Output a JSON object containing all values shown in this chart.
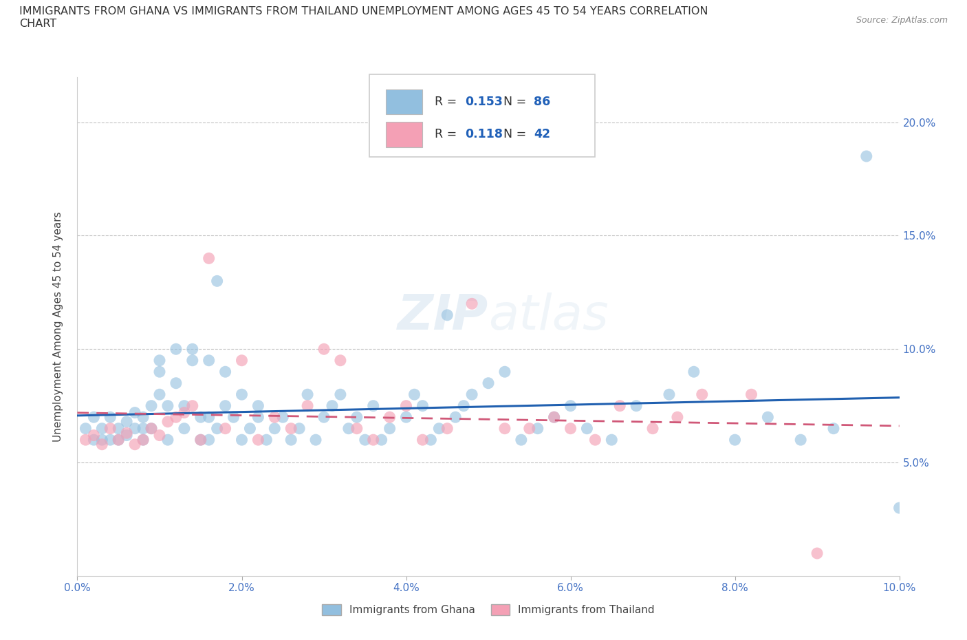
{
  "title": "IMMIGRANTS FROM GHANA VS IMMIGRANTS FROM THAILAND UNEMPLOYMENT AMONG AGES 45 TO 54 YEARS CORRELATION\nCHART",
  "source_text": "Source: ZipAtlas.com",
  "ylabel": "Unemployment Among Ages 45 to 54 years",
  "xlim": [
    0.0,
    0.1
  ],
  "ylim": [
    0.0,
    0.22
  ],
  "xticks": [
    0.0,
    0.02,
    0.04,
    0.06,
    0.08,
    0.1
  ],
  "yticks": [
    0.05,
    0.1,
    0.15,
    0.2
  ],
  "xticklabels": [
    "0.0%",
    "2.0%",
    "4.0%",
    "6.0%",
    "8.0%",
    "10.0%"
  ],
  "yticklabels_right": [
    "5.0%",
    "10.0%",
    "15.0%",
    "20.0%"
  ],
  "ghana_color": "#92bfdf",
  "thailand_color": "#f4a0b5",
  "ghana_line_color": "#2060b0",
  "thailand_line_color": "#d05878",
  "R_ghana": 0.153,
  "N_ghana": 86,
  "R_thailand": 0.118,
  "N_thailand": 42,
  "ghana_x": [
    0.001,
    0.002,
    0.002,
    0.003,
    0.003,
    0.004,
    0.004,
    0.005,
    0.005,
    0.006,
    0.006,
    0.007,
    0.007,
    0.008,
    0.008,
    0.008,
    0.009,
    0.009,
    0.01,
    0.01,
    0.01,
    0.011,
    0.011,
    0.012,
    0.012,
    0.013,
    0.013,
    0.014,
    0.014,
    0.015,
    0.015,
    0.016,
    0.016,
    0.016,
    0.017,
    0.017,
    0.018,
    0.018,
    0.019,
    0.02,
    0.02,
    0.021,
    0.022,
    0.022,
    0.023,
    0.024,
    0.025,
    0.026,
    0.027,
    0.028,
    0.029,
    0.03,
    0.031,
    0.032,
    0.033,
    0.034,
    0.035,
    0.036,
    0.037,
    0.038,
    0.04,
    0.041,
    0.042,
    0.043,
    0.044,
    0.045,
    0.046,
    0.047,
    0.048,
    0.05,
    0.052,
    0.054,
    0.056,
    0.058,
    0.06,
    0.062,
    0.065,
    0.068,
    0.072,
    0.075,
    0.08,
    0.084,
    0.088,
    0.092,
    0.096,
    0.1
  ],
  "ghana_y": [
    0.065,
    0.06,
    0.07,
    0.06,
    0.065,
    0.06,
    0.07,
    0.06,
    0.065,
    0.062,
    0.068,
    0.065,
    0.072,
    0.06,
    0.065,
    0.07,
    0.065,
    0.075,
    0.08,
    0.09,
    0.095,
    0.06,
    0.075,
    0.085,
    0.1,
    0.065,
    0.075,
    0.095,
    0.1,
    0.06,
    0.07,
    0.06,
    0.07,
    0.095,
    0.065,
    0.13,
    0.075,
    0.09,
    0.07,
    0.06,
    0.08,
    0.065,
    0.07,
    0.075,
    0.06,
    0.065,
    0.07,
    0.06,
    0.065,
    0.08,
    0.06,
    0.07,
    0.075,
    0.08,
    0.065,
    0.07,
    0.06,
    0.075,
    0.06,
    0.065,
    0.07,
    0.08,
    0.075,
    0.06,
    0.065,
    0.115,
    0.07,
    0.075,
    0.08,
    0.085,
    0.09,
    0.06,
    0.065,
    0.07,
    0.075,
    0.065,
    0.06,
    0.075,
    0.08,
    0.09,
    0.06,
    0.07,
    0.06,
    0.065,
    0.185,
    0.03
  ],
  "thailand_x": [
    0.001,
    0.002,
    0.003,
    0.004,
    0.005,
    0.006,
    0.007,
    0.008,
    0.009,
    0.01,
    0.011,
    0.012,
    0.013,
    0.014,
    0.015,
    0.016,
    0.018,
    0.02,
    0.022,
    0.024,
    0.026,
    0.028,
    0.03,
    0.032,
    0.034,
    0.036,
    0.038,
    0.04,
    0.042,
    0.045,
    0.048,
    0.052,
    0.055,
    0.058,
    0.06,
    0.063,
    0.066,
    0.07,
    0.073,
    0.076,
    0.082,
    0.09
  ],
  "thailand_y": [
    0.06,
    0.062,
    0.058,
    0.065,
    0.06,
    0.063,
    0.058,
    0.06,
    0.065,
    0.062,
    0.068,
    0.07,
    0.072,
    0.075,
    0.06,
    0.14,
    0.065,
    0.095,
    0.06,
    0.07,
    0.065,
    0.075,
    0.1,
    0.095,
    0.065,
    0.06,
    0.07,
    0.075,
    0.06,
    0.065,
    0.12,
    0.065,
    0.065,
    0.07,
    0.065,
    0.06,
    0.075,
    0.065,
    0.07,
    0.08,
    0.08,
    0.01
  ],
  "background_color": "#ffffff",
  "grid_color": "#bbbbbb",
  "legend_label_ghana": "Immigrants from Ghana",
  "legend_label_thailand": "Immigrants from Thailand"
}
